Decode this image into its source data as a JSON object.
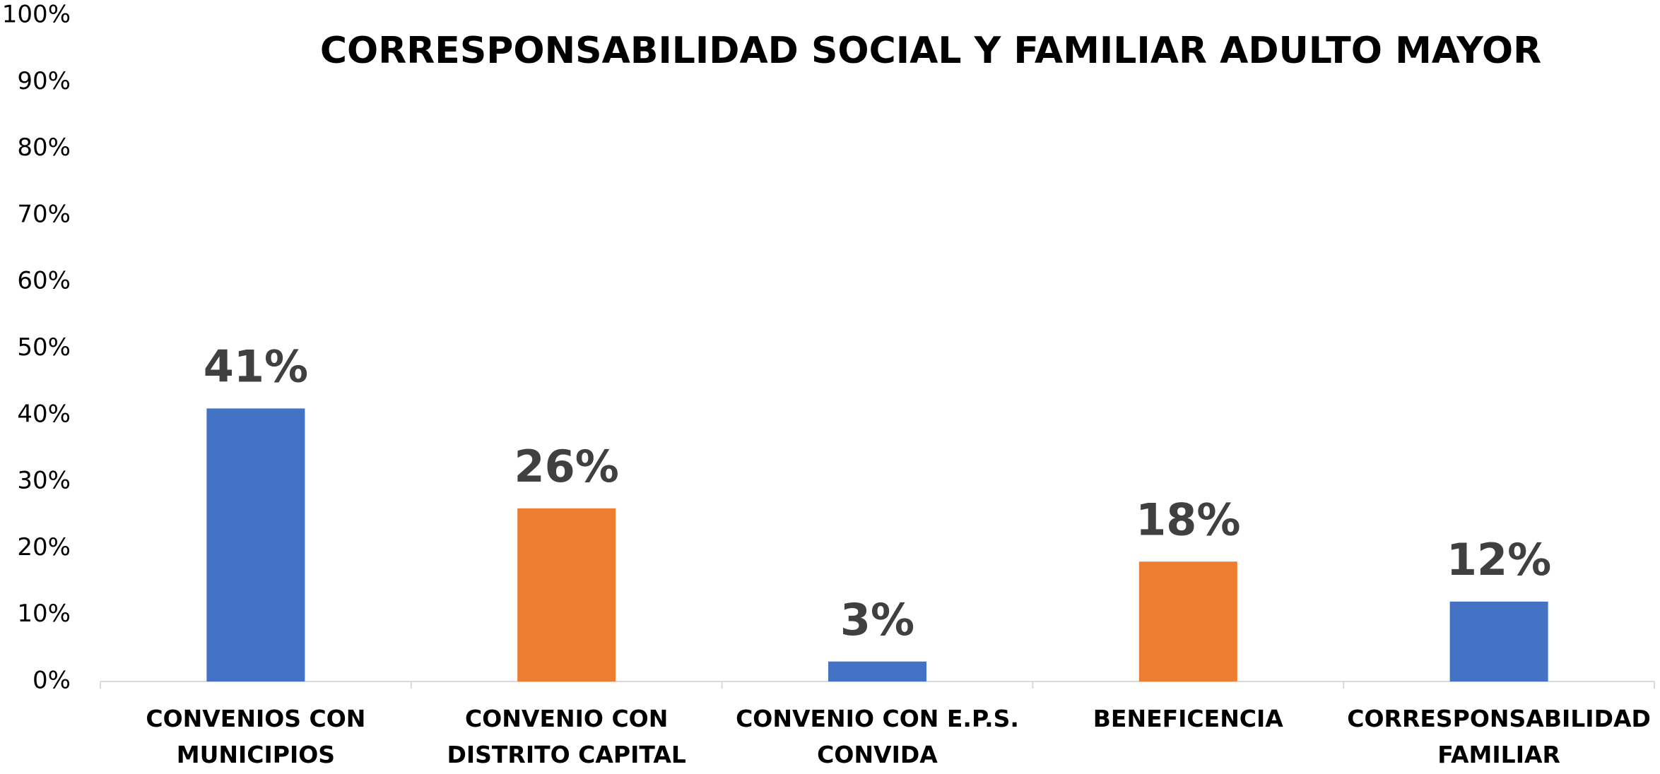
{
  "chart_data": {
    "type": "bar",
    "title": "CORRESPONSABILIDAD SOCIAL Y FAMILIAR ADULTO MAYOR",
    "categories": [
      [
        "CONVENIOS CON",
        "MUNICIPIOS"
      ],
      [
        "CONVENIO CON",
        "DISTRITO CAPITAL"
      ],
      [
        "CONVENIO CON E.P.S.",
        "CONVIDA"
      ],
      [
        "BENEFICENCIA"
      ],
      [
        "CORRESPONSABILIDAD",
        "FAMILIAR"
      ]
    ],
    "values": [
      41,
      26,
      3,
      18,
      12
    ],
    "value_labels": [
      "41%",
      "26%",
      "3%",
      "18%",
      "12%"
    ],
    "colors": [
      "#4472c4",
      "#ed7d31",
      "#4472c4",
      "#ed7d31",
      "#4472c4"
    ],
    "ylim": [
      0,
      100
    ],
    "yticks": [
      {
        "value": 0,
        "label": "0%"
      },
      {
        "value": 10,
        "label": "10%"
      },
      {
        "value": 20,
        "label": "20%"
      },
      {
        "value": 30,
        "label": "30%"
      },
      {
        "value": 40,
        "label": "40%"
      },
      {
        "value": 50,
        "label": "50%"
      },
      {
        "value": 60,
        "label": "60%"
      },
      {
        "value": 70,
        "label": "70%"
      },
      {
        "value": 80,
        "label": "80%"
      },
      {
        "value": 90,
        "label": "90%"
      },
      {
        "value": 100,
        "label": "100%"
      }
    ],
    "grid": false
  }
}
